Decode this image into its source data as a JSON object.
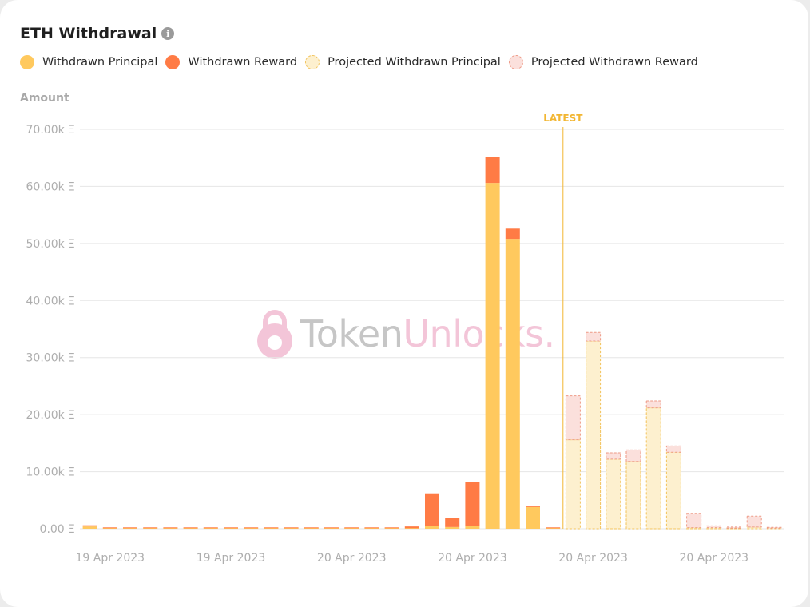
{
  "title": "ETH Withdrawal",
  "info_icon": "i",
  "legend": [
    {
      "label": "Withdrawn Principal",
      "color": "#ffc95e",
      "style": "solid"
    },
    {
      "label": "Withdrawn Reward",
      "color": "#ff7b45",
      "style": "solid"
    },
    {
      "label": "Projected Withdrawn Principal",
      "color": "#fdf0cf",
      "border": "#f2c35c",
      "style": "dashed"
    },
    {
      "label": "Projected Withdrawn Reward",
      "color": "#fbe0dc",
      "border": "#ee9a86",
      "style": "dashed"
    }
  ],
  "watermark": {
    "part1": "Token",
    "part2": "Unlocks."
  },
  "chart_data": {
    "type": "bar",
    "stacked": true,
    "ylabel": "Amount",
    "ylim": [
      0,
      70000
    ],
    "yticks": [
      "0.00 Ξ",
      "10.00k Ξ",
      "20.00k Ξ",
      "30.00k Ξ",
      "40.00k Ξ",
      "50.00k Ξ",
      "60.00k Ξ",
      "70.00k Ξ"
    ],
    "xtick_labels": [
      "19 Apr 2023",
      "19 Apr 2023",
      "20 Apr 2023",
      "20 Apr 2023",
      "20 Apr 2023",
      "20 Apr 2023"
    ],
    "xtick_positions": [
      1,
      7,
      13,
      19,
      25,
      31
    ],
    "latest_label": "LATEST",
    "latest_position": 23.5,
    "grid": true,
    "legend_position": "top-left",
    "series": [
      {
        "name": "Withdrawn Principal",
        "values": [
          400,
          100,
          100,
          100,
          100,
          100,
          100,
          100,
          100,
          100,
          100,
          100,
          100,
          100,
          100,
          100,
          100,
          500,
          300,
          500,
          60600,
          50800,
          3800,
          100,
          0,
          0,
          0,
          0,
          0,
          0,
          0,
          0,
          0,
          0,
          0
        ]
      },
      {
        "name": "Withdrawn Reward",
        "values": [
          200,
          100,
          100,
          100,
          100,
          100,
          100,
          100,
          100,
          100,
          100,
          100,
          100,
          100,
          100,
          100,
          300,
          5700,
          1600,
          7700,
          4600,
          1800,
          200,
          100,
          0,
          0,
          0,
          0,
          0,
          0,
          0,
          0,
          0,
          0,
          0
        ]
      },
      {
        "name": "Projected Withdrawn Principal",
        "values": [
          0,
          0,
          0,
          0,
          0,
          0,
          0,
          0,
          0,
          0,
          0,
          0,
          0,
          0,
          0,
          0,
          0,
          0,
          0,
          0,
          0,
          0,
          0,
          0,
          15600,
          32900,
          12200,
          11800,
          21200,
          13400,
          200,
          200,
          100,
          300,
          100
        ]
      },
      {
        "name": "Projected Withdrawn Reward",
        "values": [
          0,
          0,
          0,
          0,
          0,
          0,
          0,
          0,
          0,
          0,
          0,
          0,
          0,
          0,
          0,
          0,
          0,
          0,
          0,
          0,
          0,
          0,
          0,
          0,
          7700,
          1500,
          1100,
          2000,
          1200,
          1100,
          2500,
          300,
          200,
          1900,
          100
        ]
      }
    ]
  }
}
